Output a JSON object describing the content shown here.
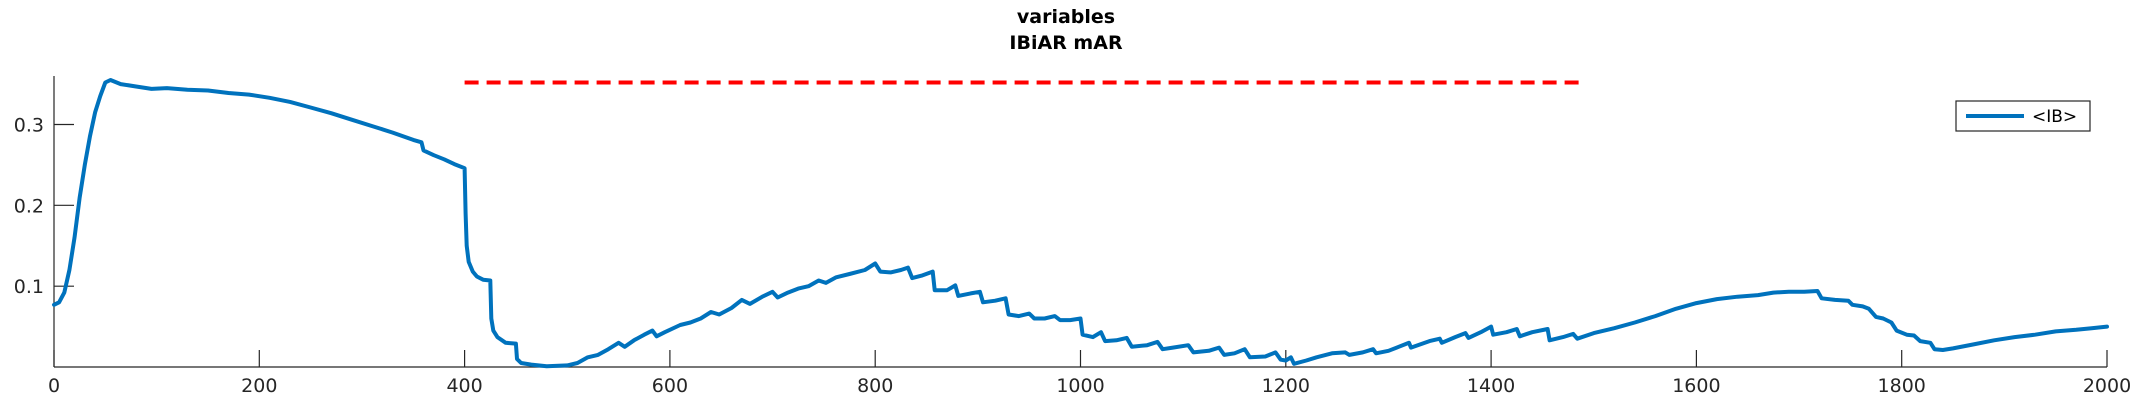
{
  "chart_data": {
    "type": "line",
    "title_lines": [
      "variables",
      "IBiAR mAR"
    ],
    "xlabel": "",
    "ylabel": "",
    "xlim": [
      0,
      2000
    ],
    "ylim": [
      0,
      0.36
    ],
    "xticks": [
      0,
      200,
      400,
      600,
      800,
      1000,
      1200,
      1400,
      1600,
      1800,
      2000
    ],
    "yticks": [
      0.1,
      0.2,
      0.3
    ],
    "ytick_labels": [
      "0.1",
      "0.2",
      "0.3"
    ],
    "grid": false,
    "legend": {
      "location": "top-right",
      "entries": [
        "<IB>"
      ]
    },
    "series": [
      {
        "name": "<IB>",
        "color": "#0072BD",
        "points": [
          [
            0,
            0.077
          ],
          [
            5,
            0.08
          ],
          [
            10,
            0.092
          ],
          [
            15,
            0.12
          ],
          [
            20,
            0.16
          ],
          [
            25,
            0.21
          ],
          [
            30,
            0.25
          ],
          [
            35,
            0.285
          ],
          [
            40,
            0.315
          ],
          [
            45,
            0.335
          ],
          [
            50,
            0.352
          ],
          [
            55,
            0.355
          ],
          [
            65,
            0.35
          ],
          [
            80,
            0.347
          ],
          [
            95,
            0.344
          ],
          [
            110,
            0.345
          ],
          [
            130,
            0.343
          ],
          [
            150,
            0.342
          ],
          [
            170,
            0.339
          ],
          [
            190,
            0.337
          ],
          [
            210,
            0.333
          ],
          [
            230,
            0.328
          ],
          [
            250,
            0.321
          ],
          [
            270,
            0.314
          ],
          [
            290,
            0.306
          ],
          [
            310,
            0.298
          ],
          [
            330,
            0.29
          ],
          [
            350,
            0.281
          ],
          [
            358,
            0.278
          ],
          [
            360,
            0.268
          ],
          [
            370,
            0.262
          ],
          [
            380,
            0.257
          ],
          [
            390,
            0.251
          ],
          [
            400,
            0.246
          ],
          [
            401,
            0.19
          ],
          [
            402,
            0.15
          ],
          [
            404,
            0.13
          ],
          [
            408,
            0.118
          ],
          [
            412,
            0.112
          ],
          [
            418,
            0.108
          ],
          [
            425,
            0.107
          ],
          [
            426,
            0.06
          ],
          [
            428,
            0.045
          ],
          [
            432,
            0.037
          ],
          [
            440,
            0.03
          ],
          [
            450,
            0.029
          ],
          [
            451,
            0.01
          ],
          [
            455,
            0.005
          ],
          [
            465,
            0.003
          ],
          [
            480,
            0.001
          ],
          [
            500,
            0.002
          ],
          [
            510,
            0.005
          ],
          [
            520,
            0.012
          ],
          [
            530,
            0.015
          ],
          [
            540,
            0.022
          ],
          [
            550,
            0.03
          ],
          [
            556,
            0.025
          ],
          [
            565,
            0.033
          ],
          [
            575,
            0.04
          ],
          [
            583,
            0.045
          ],
          [
            587,
            0.038
          ],
          [
            595,
            0.043
          ],
          [
            610,
            0.052
          ],
          [
            620,
            0.055
          ],
          [
            630,
            0.06
          ],
          [
            640,
            0.068
          ],
          [
            648,
            0.065
          ],
          [
            660,
            0.073
          ],
          [
            670,
            0.083
          ],
          [
            678,
            0.078
          ],
          [
            690,
            0.087
          ],
          [
            700,
            0.093
          ],
          [
            705,
            0.086
          ],
          [
            715,
            0.092
          ],
          [
            725,
            0.097
          ],
          [
            735,
            0.1
          ],
          [
            745,
            0.107
          ],
          [
            752,
            0.104
          ],
          [
            762,
            0.111
          ],
          [
            775,
            0.115
          ],
          [
            790,
            0.12
          ],
          [
            800,
            0.128
          ],
          [
            805,
            0.118
          ],
          [
            815,
            0.117
          ],
          [
            825,
            0.12
          ],
          [
            832,
            0.123
          ],
          [
            836,
            0.11
          ],
          [
            845,
            0.113
          ],
          [
            856,
            0.118
          ],
          [
            858,
            0.095
          ],
          [
            870,
            0.095
          ],
          [
            878,
            0.101
          ],
          [
            881,
            0.088
          ],
          [
            893,
            0.091
          ],
          [
            902,
            0.093
          ],
          [
            905,
            0.08
          ],
          [
            917,
            0.082
          ],
          [
            927,
            0.085
          ],
          [
            930,
            0.065
          ],
          [
            940,
            0.063
          ],
          [
            950,
            0.066
          ],
          [
            955,
            0.06
          ],
          [
            965,
            0.06
          ],
          [
            975,
            0.063
          ],
          [
            980,
            0.058
          ],
          [
            990,
            0.058
          ],
          [
            1000,
            0.06
          ],
          [
            1002,
            0.04
          ],
          [
            1012,
            0.037
          ],
          [
            1020,
            0.043
          ],
          [
            1024,
            0.032
          ],
          [
            1035,
            0.033
          ],
          [
            1045,
            0.036
          ],
          [
            1050,
            0.025
          ],
          [
            1065,
            0.027
          ],
          [
            1075,
            0.031
          ],
          [
            1080,
            0.022
          ],
          [
            1090,
            0.024
          ],
          [
            1105,
            0.027
          ],
          [
            1110,
            0.018
          ],
          [
            1125,
            0.02
          ],
          [
            1135,
            0.024
          ],
          [
            1140,
            0.015
          ],
          [
            1150,
            0.017
          ],
          [
            1160,
            0.022
          ],
          [
            1165,
            0.012
          ],
          [
            1180,
            0.013
          ],
          [
            1190,
            0.018
          ],
          [
            1195,
            0.009
          ],
          [
            1200,
            0.008
          ],
          [
            1205,
            0.012
          ],
          [
            1208,
            0.004
          ],
          [
            1220,
            0.008
          ],
          [
            1230,
            0.012
          ],
          [
            1245,
            0.017
          ],
          [
            1258,
            0.018
          ],
          [
            1262,
            0.015
          ],
          [
            1275,
            0.018
          ],
          [
            1285,
            0.022
          ],
          [
            1288,
            0.017
          ],
          [
            1300,
            0.02
          ],
          [
            1310,
            0.025
          ],
          [
            1320,
            0.03
          ],
          [
            1322,
            0.024
          ],
          [
            1340,
            0.032
          ],
          [
            1350,
            0.035
          ],
          [
            1352,
            0.03
          ],
          [
            1365,
            0.037
          ],
          [
            1375,
            0.042
          ],
          [
            1378,
            0.036
          ],
          [
            1390,
            0.043
          ],
          [
            1400,
            0.05
          ],
          [
            1402,
            0.04
          ],
          [
            1415,
            0.043
          ],
          [
            1425,
            0.047
          ],
          [
            1428,
            0.038
          ],
          [
            1440,
            0.043
          ],
          [
            1455,
            0.047
          ],
          [
            1457,
            0.033
          ],
          [
            1470,
            0.037
          ],
          [
            1480,
            0.041
          ],
          [
            1484,
            0.035
          ],
          [
            1500,
            0.042
          ],
          [
            1520,
            0.048
          ],
          [
            1540,
            0.055
          ],
          [
            1560,
            0.063
          ],
          [
            1580,
            0.072
          ],
          [
            1600,
            0.079
          ],
          [
            1620,
            0.084
          ],
          [
            1640,
            0.087
          ],
          [
            1660,
            0.089
          ],
          [
            1675,
            0.092
          ],
          [
            1690,
            0.093
          ],
          [
            1705,
            0.093
          ],
          [
            1718,
            0.094
          ],
          [
            1722,
            0.085
          ],
          [
            1735,
            0.083
          ],
          [
            1748,
            0.082
          ],
          [
            1752,
            0.077
          ],
          [
            1762,
            0.075
          ],
          [
            1768,
            0.072
          ],
          [
            1775,
            0.062
          ],
          [
            1782,
            0.06
          ],
          [
            1790,
            0.055
          ],
          [
            1795,
            0.045
          ],
          [
            1805,
            0.04
          ],
          [
            1812,
            0.039
          ],
          [
            1818,
            0.032
          ],
          [
            1828,
            0.03
          ],
          [
            1832,
            0.022
          ],
          [
            1840,
            0.021
          ],
          [
            1850,
            0.023
          ],
          [
            1870,
            0.028
          ],
          [
            1890,
            0.033
          ],
          [
            1910,
            0.037
          ],
          [
            1930,
            0.04
          ],
          [
            1950,
            0.044
          ],
          [
            1970,
            0.046
          ],
          [
            1985,
            0.048
          ],
          [
            2000,
            0.05
          ]
        ]
      }
    ],
    "reference_line": {
      "style": "dashed",
      "color": "#FF0000",
      "x": [
        400,
        1490
      ],
      "y": 0.352
    }
  }
}
